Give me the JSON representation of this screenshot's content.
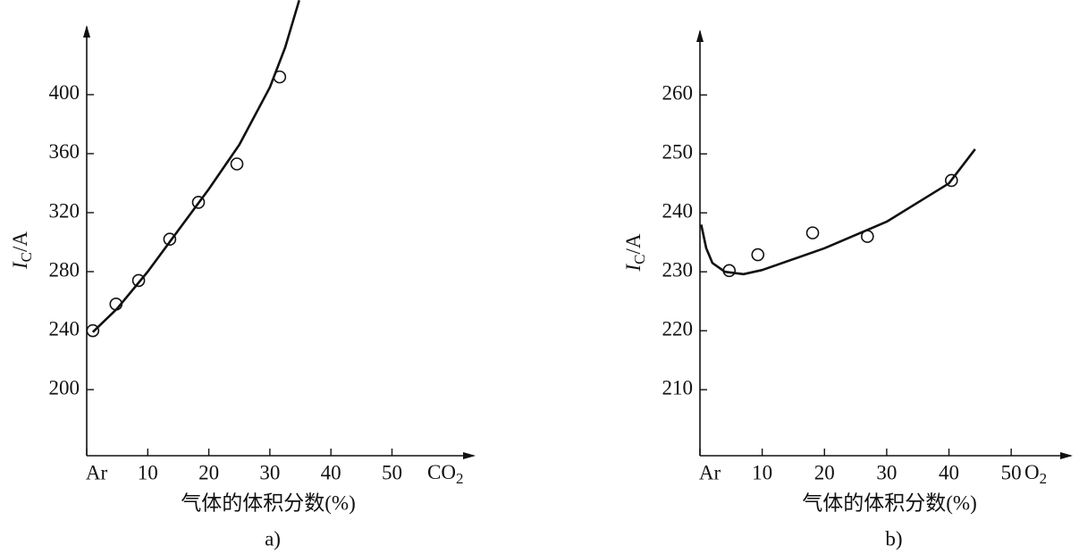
{
  "chart_data": [
    {
      "type": "scatter",
      "panel_label": "a)",
      "xlabel": "气体的体积分数(%)",
      "x_end_label": [
        "CO",
        "2"
      ],
      "ylabel": [
        "I",
        "C",
        "/A"
      ],
      "xlim": [
        0,
        63.4
      ],
      "ylim": [
        155.2,
        446
      ],
      "xticks": [
        {
          "value": 0,
          "label": "Ar"
        },
        10,
        20,
        30,
        40,
        50
      ],
      "yticks": [
        200,
        240,
        280,
        320,
        360,
        400
      ],
      "color": "#111111",
      "series": [
        {
          "mode": "markers",
          "x": [
            1,
            4.8,
            8.5,
            13.6,
            18.3,
            24.6,
            31.6
          ],
          "values": [
            240,
            258,
            274,
            302,
            327,
            353,
            412
          ]
        },
        {
          "mode": "line",
          "x": [
            1,
            5,
            10,
            15,
            20,
            25,
            30,
            32.5,
            34.8
          ],
          "values": [
            239,
            255,
            280,
            308,
            336,
            366,
            405,
            432,
            464
          ]
        }
      ]
    },
    {
      "type": "scatter",
      "panel_label": "b)",
      "xlabel": "气体的体积分数(%)",
      "x_end_label": [
        "O",
        "2"
      ],
      "ylabel": [
        "I",
        "C",
        "/A"
      ],
      "xlim": [
        0,
        59.6
      ],
      "ylim": [
        198.8,
        270.8
      ],
      "xticks": [
        {
          "value": 0,
          "label": "Ar"
        },
        10,
        20,
        30,
        40,
        50
      ],
      "yticks": [
        210,
        220,
        230,
        240,
        250,
        260
      ],
      "color": "#111111",
      "series": [
        {
          "mode": "markers",
          "x": [
            4.7,
            9.3,
            18.1,
            26.9,
            40.4
          ],
          "values": [
            230.2,
            232.9,
            236.6,
            236,
            245.5
          ]
        },
        {
          "mode": "line",
          "x": [
            0.2,
            1,
            2,
            4,
            7,
            10,
            20,
            30,
            40,
            44.2
          ],
          "values": [
            238,
            234,
            231.5,
            230,
            229.6,
            230.3,
            234,
            238.5,
            245,
            250.8
          ]
        }
      ]
    }
  ]
}
